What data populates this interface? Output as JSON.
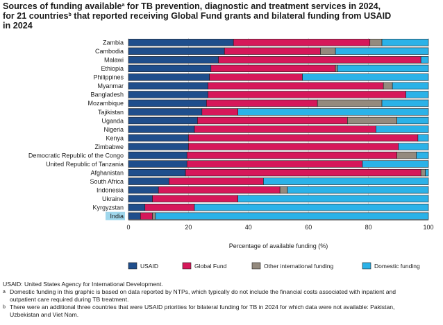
{
  "title": {
    "part1": "Sources of funding available",
    "sup1": "a",
    "part2": " for TB prevention, diagnostic and treatment services in 2024,",
    "part3": "for 21 countries",
    "sup2": "b",
    "part4": " that reported receiving Global Fund grants and bilateral funding from USAID",
    "part5": "in 2024"
  },
  "chart_data": {
    "type": "bar",
    "orientation": "horizontal",
    "stacked": true,
    "xlabel": "Percentage of available funding (%)",
    "xlim": [
      0,
      100
    ],
    "xticks": [
      0,
      20,
      40,
      60,
      80,
      100
    ],
    "categories": [
      "Zambia",
      "Cambodia",
      "Malawi",
      "Ethiopia",
      "Philippines",
      "Myanmar",
      "Bangladesh",
      "Mozambique",
      "Tajikistan",
      "Uganda",
      "Nigeria",
      "Kenya",
      "Zimbabwe",
      "Democratic Republic of the Congo",
      "United Republic of Tanzania",
      "Afghanistan",
      "South Africa",
      "Indonesia",
      "Ukraine",
      "Kyrgyzstan",
      "India"
    ],
    "highlighted_category": "India",
    "series": [
      {
        "name": "USAID",
        "color": "#1f4e8c",
        "values": [
          35,
          32,
          30,
          27.5,
          27,
          26.5,
          26.5,
          26,
          24.5,
          23,
          22,
          20,
          20,
          19.5,
          19.5,
          19,
          13.5,
          10,
          8,
          5.5,
          4
        ]
      },
      {
        "name": "Global Fund",
        "color": "#d6185a",
        "values": [
          45.5,
          32,
          67.5,
          41.5,
          31,
          58.5,
          66,
          37,
          12,
          50,
          60.5,
          76.5,
          70,
          70,
          58.5,
          78.5,
          31.5,
          40.5,
          28.5,
          16.5,
          4
        ]
      },
      {
        "name": "Other international funding",
        "color": "#948a7e",
        "values": [
          4,
          5,
          0,
          0.7,
          0,
          3,
          0,
          21.5,
          0,
          16.5,
          0,
          0,
          0,
          6.5,
          0,
          1.5,
          0,
          2.5,
          0,
          0,
          1
        ]
      },
      {
        "name": "Domestic funding",
        "color": "#2bb2e8",
        "values": [
          15.5,
          31,
          2.5,
          30.3,
          42,
          12,
          7.5,
          15.5,
          63.5,
          10.5,
          17.5,
          3.5,
          10,
          4,
          22,
          1,
          55,
          47,
          63.5,
          78,
          91
        ]
      }
    ]
  },
  "notes": {
    "abbrev": "USAID: United States Agency for International Development.",
    "fn_a_mark": "a",
    "fn_a_line1": "Domestic funding in this graphic is based on data reported by NTPs, which typically do not include the financial costs associated with inpatient and",
    "fn_a_line2": "outpatient care required during TB treatment.",
    "fn_b_mark": "b",
    "fn_b_line1": "There were an additional three countries that were USAID priorities for bilateral funding for TB in 2024 for which data were not available: Pakistan,",
    "fn_b_line2": "Uzbekistan and Viet Nam."
  }
}
